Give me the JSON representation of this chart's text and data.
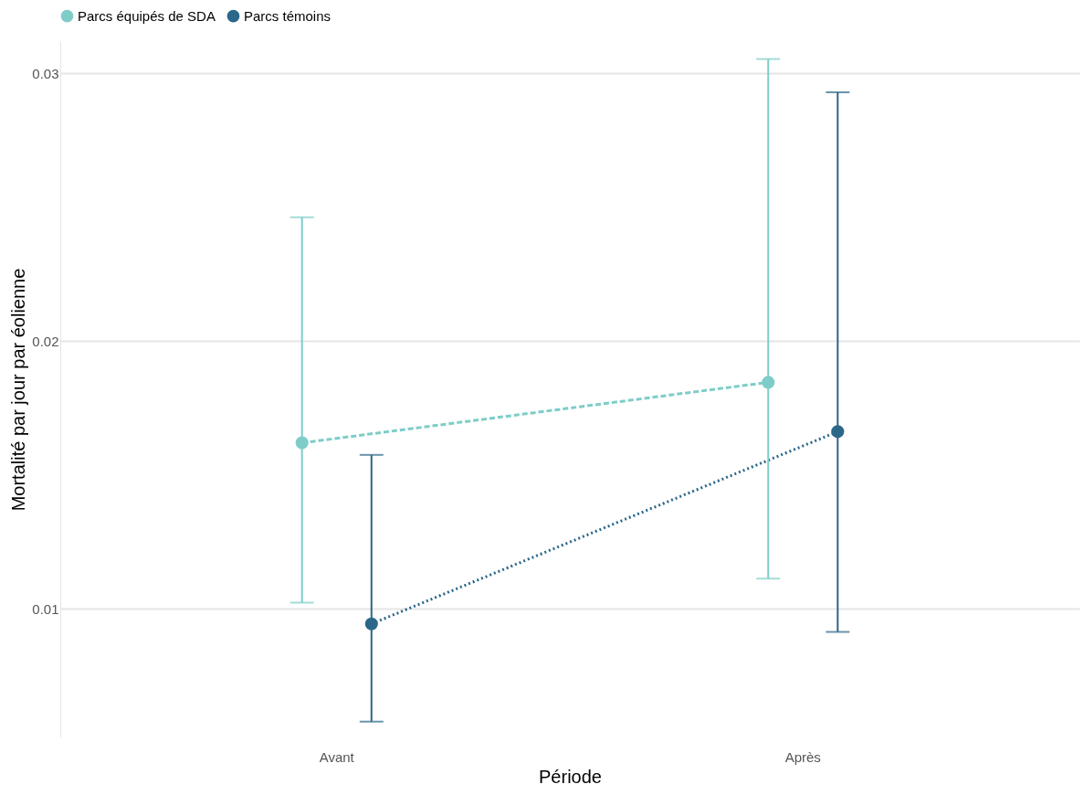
{
  "chart_data": {
    "type": "line",
    "xlabel": "Période",
    "ylabel": "Mortalité par jour par éolienne",
    "categories": [
      "Avant",
      "Après"
    ],
    "series": [
      {
        "name": "Parcs équipés de SDA",
        "color": "#7ecdc8",
        "line_style": "dashed",
        "values": [
          0.0162,
          0.01846
        ],
        "errors": [
          [
            0.01023,
            0.02462
          ],
          [
            0.01113,
            0.03053
          ]
        ]
      },
      {
        "name": "Parcs témoins",
        "color": "#2b6788",
        "line_style": "dotted",
        "values": [
          0.00944,
          0.01662
        ],
        "errors": [
          [
            0.00579,
            0.01575
          ],
          [
            0.00914,
            0.02929
          ]
        ]
      }
    ],
    "ylim": [
      0.0052,
      0.0312
    ],
    "yticks": [
      0.01,
      0.02,
      0.03
    ],
    "grid": "y",
    "legend": "top",
    "marker": "circle"
  }
}
